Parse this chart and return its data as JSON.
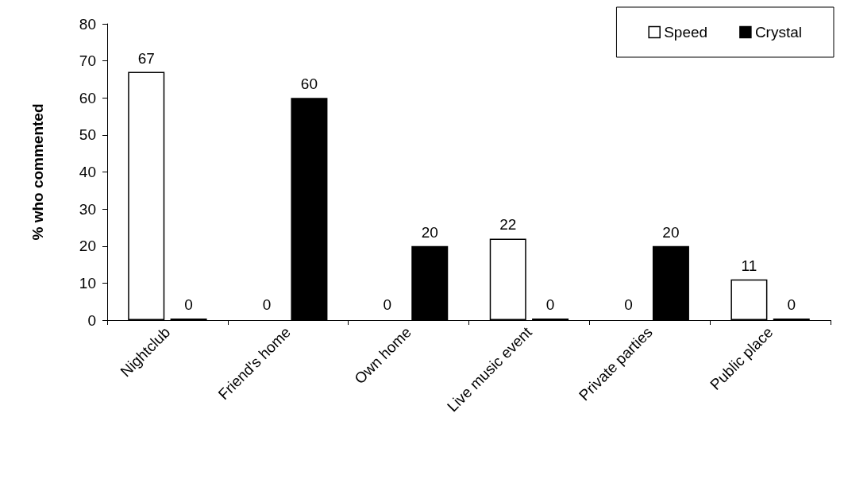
{
  "chart_data": {
    "type": "bar",
    "ylabel": "% who commented",
    "categories": [
      "Nightclub",
      "Friend's home",
      "Own home",
      "Live music event",
      "Private parties",
      "Public place"
    ],
    "series": [
      {
        "name": "Speed",
        "color": "#ffffff",
        "values": [
          67,
          0,
          0,
          22,
          0,
          11
        ]
      },
      {
        "name": "Crystal",
        "color": "#000000",
        "values": [
          0,
          60,
          20,
          0,
          20,
          0
        ]
      }
    ],
    "ylim": [
      0,
      80
    ],
    "yticks": [
      0,
      10,
      20,
      30,
      40,
      50,
      60,
      70,
      80
    ],
    "grid": false,
    "legend": "top right",
    "data_labels": true
  }
}
